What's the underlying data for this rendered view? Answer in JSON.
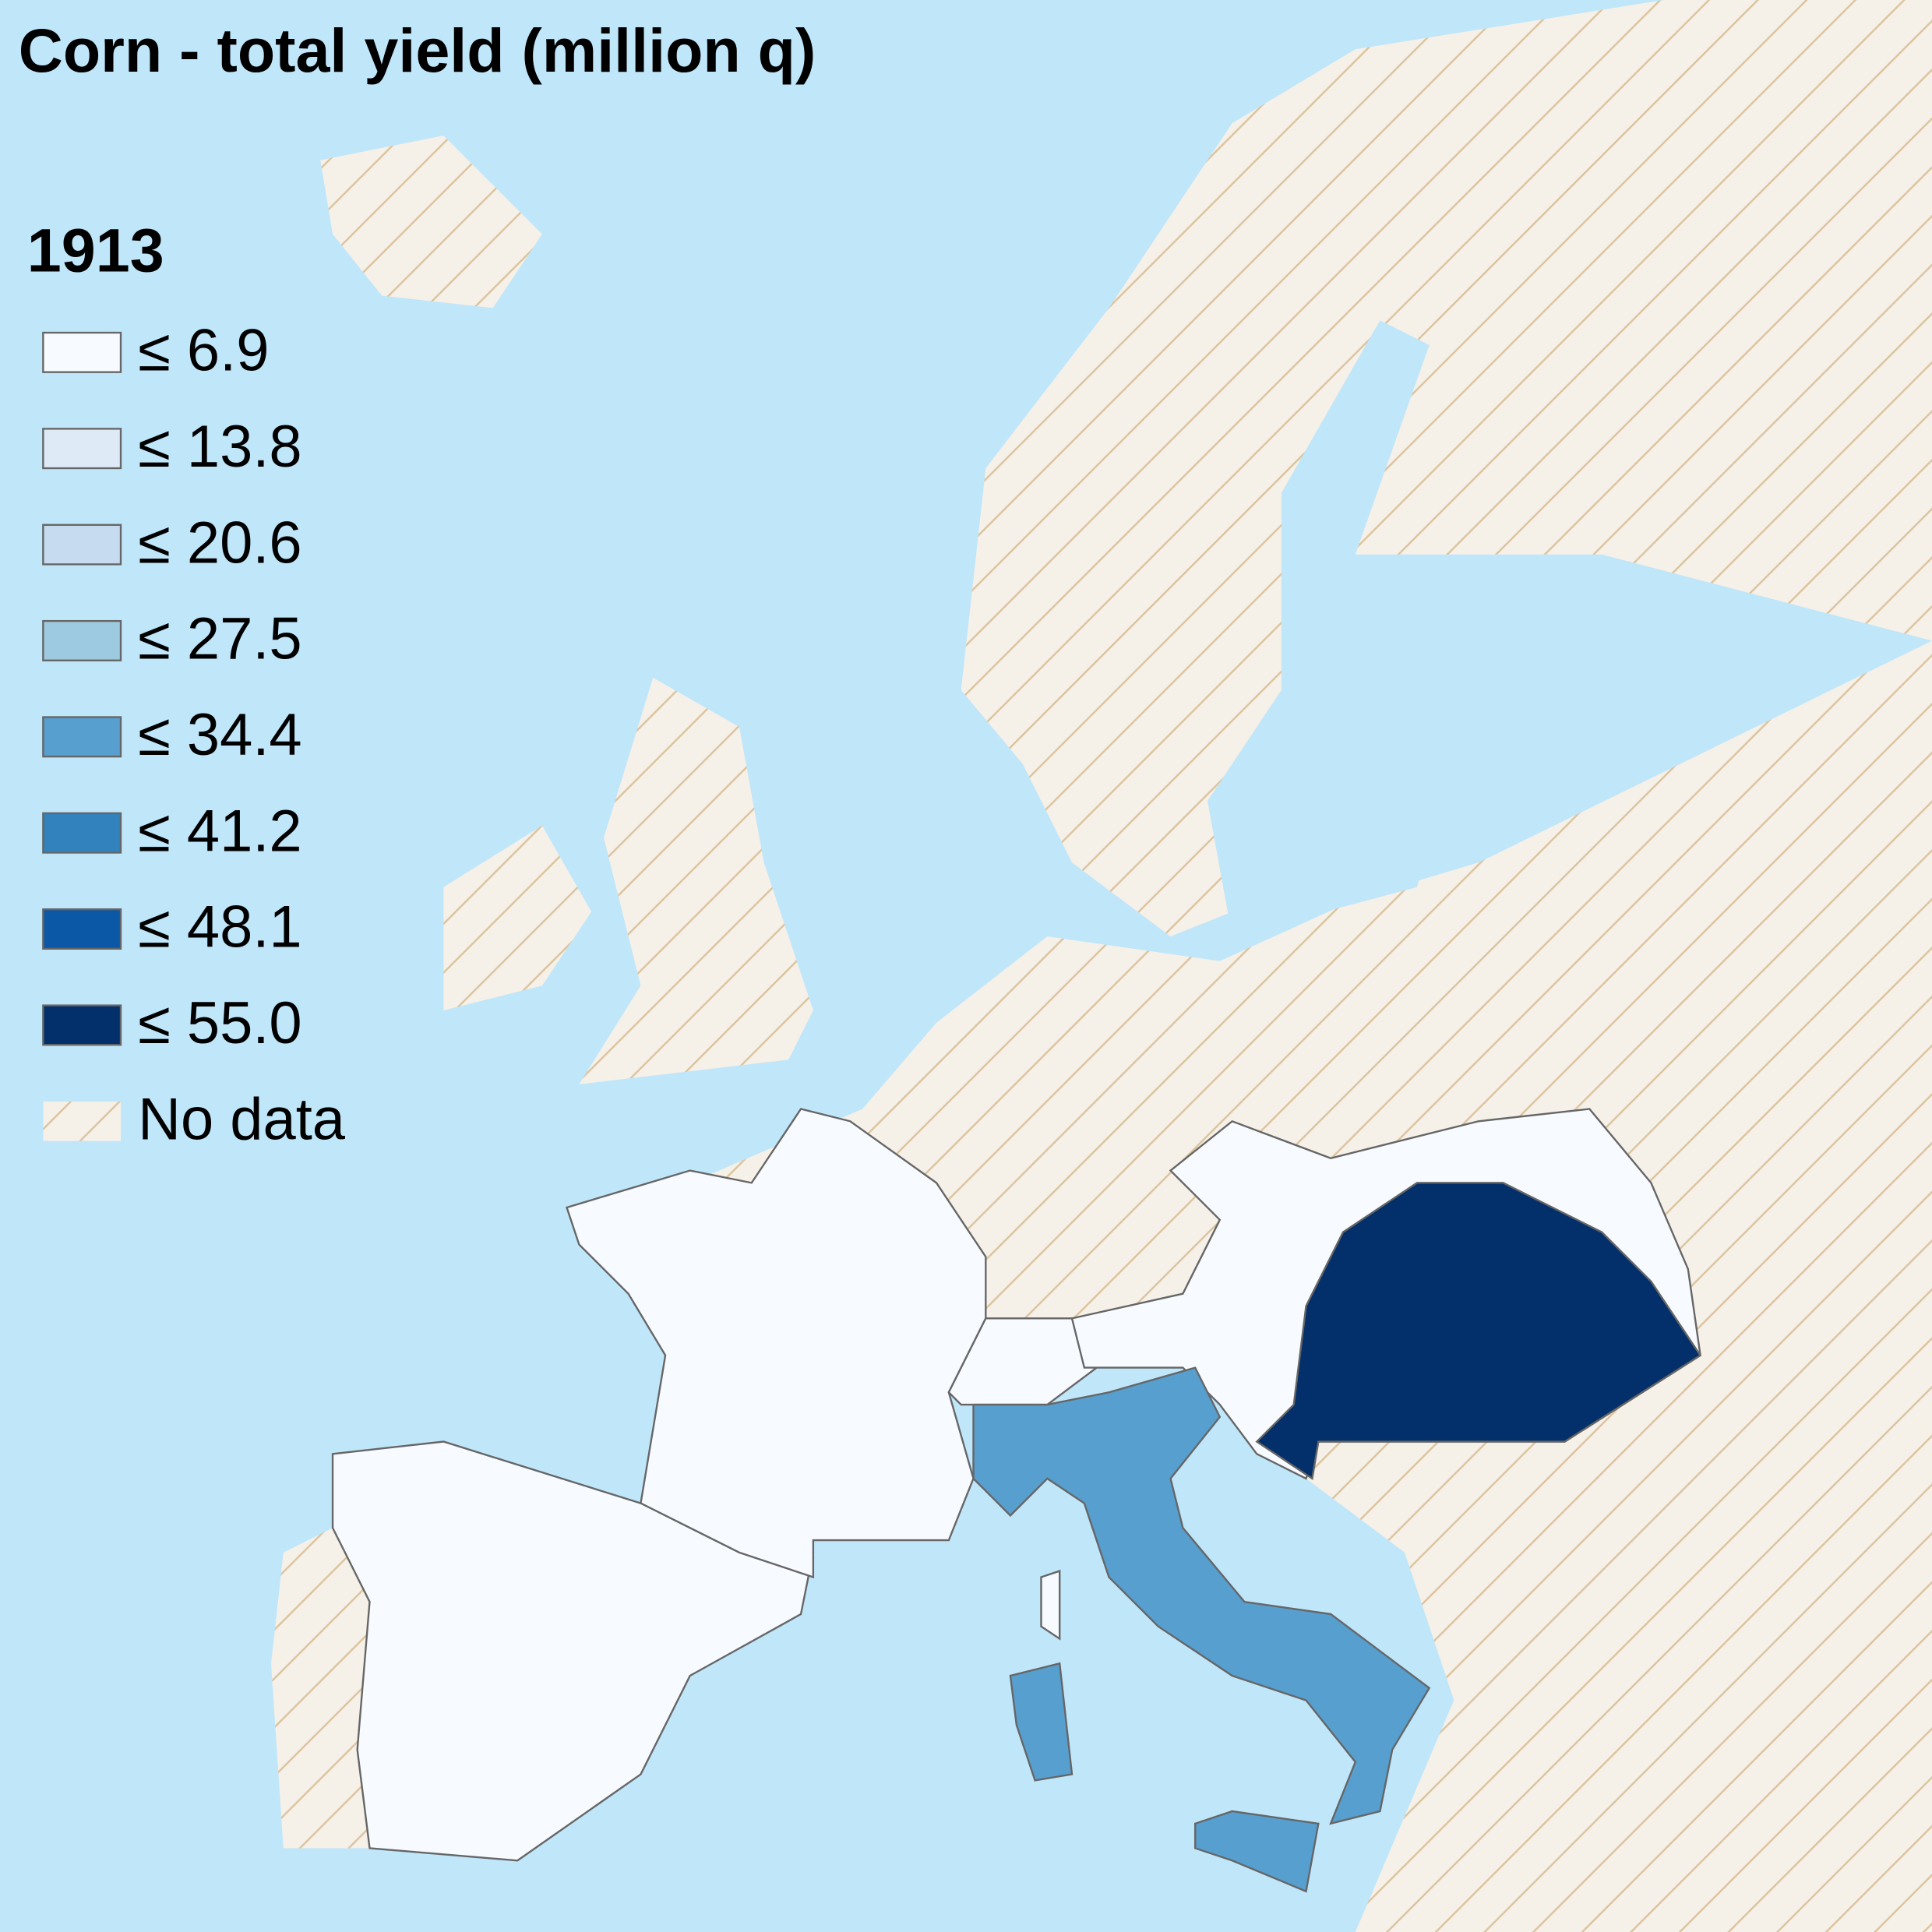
{
  "title": "Corn - total yield (million q)",
  "legend": {
    "year": "1913",
    "items": [
      {
        "label": "≤ 6.9",
        "color": "#f7fbff"
      },
      {
        "label": "≤ 13.8",
        "color": "#deebf7"
      },
      {
        "label": "≤ 20.6",
        "color": "#c6dbef"
      },
      {
        "label": "≤ 27.5",
        "color": "#9ecae1"
      },
      {
        "label": "≤ 34.4",
        "color": "#579fcf"
      },
      {
        "label": "≤ 41.2",
        "color": "#3182bd"
      },
      {
        "label": "≤ 48.1",
        "color": "#0b58a6"
      },
      {
        "label": "≤ 55.0",
        "color": "#03306b"
      }
    ],
    "no_data": "No data"
  }
}
